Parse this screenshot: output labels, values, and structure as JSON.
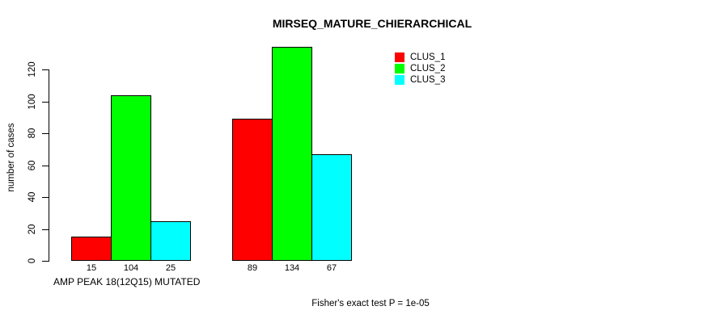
{
  "chart_data": {
    "type": "bar",
    "title": "MIRSEQ_MATURE_CHIERARCHICAL",
    "ylabel": "number of cases",
    "xlabel": "AMP PEAK 18(12Q15) MUTATED",
    "footnote": "Fisher's exact test P = 1e-05",
    "yticks": [
      0,
      20,
      40,
      60,
      80,
      100,
      120
    ],
    "ylim": [
      0,
      134
    ],
    "grid": false,
    "legend_position": "top-right",
    "categories": [
      "group-1",
      "group-2"
    ],
    "series": [
      {
        "name": "CLUS_1",
        "color": "#ff0000",
        "values": [
          15,
          89
        ]
      },
      {
        "name": "CLUS_2",
        "color": "#00ff00",
        "values": [
          104,
          134
        ]
      },
      {
        "name": "CLUS_3",
        "color": "#00ffff",
        "values": [
          25,
          67
        ]
      }
    ],
    "bar_value_labels": [
      [
        15,
        104,
        25
      ],
      [
        89,
        134,
        67
      ]
    ],
    "colors": {
      "background": "#ffffff",
      "axis": "#000000",
      "bar_border": "#000000",
      "text": "#000000"
    }
  }
}
